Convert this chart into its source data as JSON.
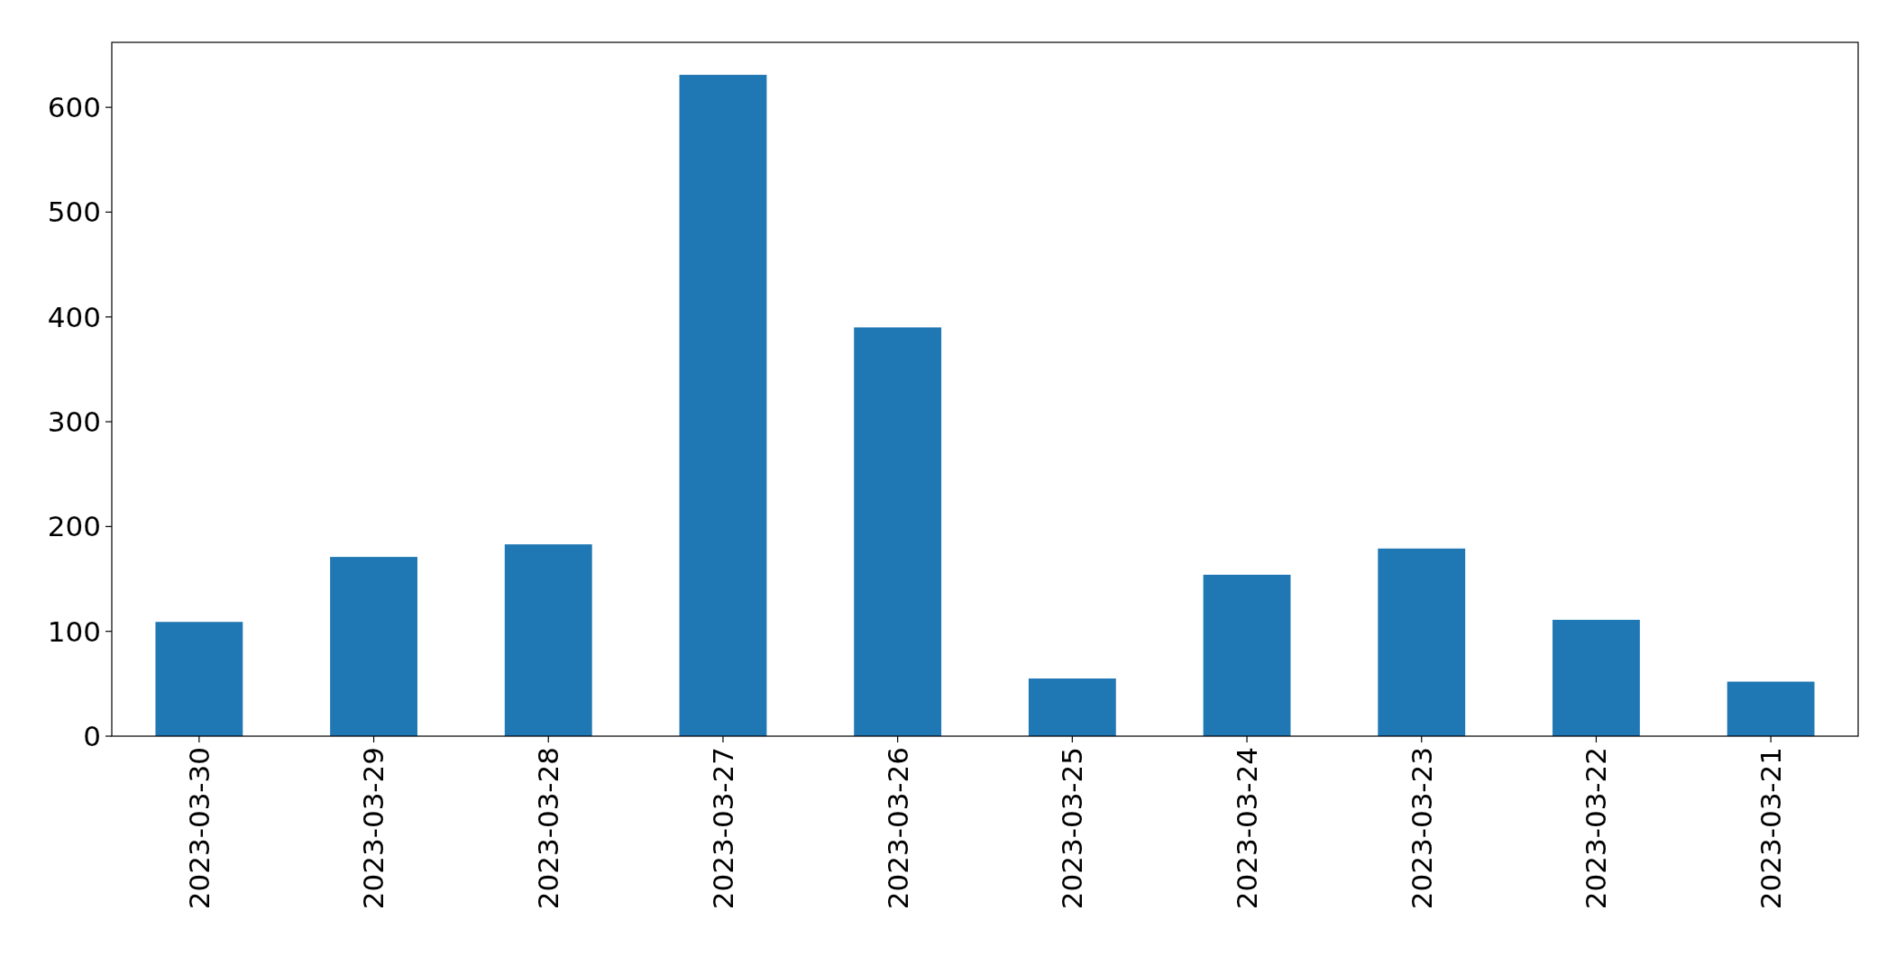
{
  "chart_data": {
    "type": "bar",
    "categories": [
      "2023-03-30",
      "2023-03-29",
      "2023-03-28",
      "2023-03-27",
      "2023-03-26",
      "2023-03-25",
      "2023-03-24",
      "2023-03-23",
      "2023-03-22",
      "2023-03-21"
    ],
    "values": [
      109,
      171,
      183,
      631,
      390,
      55,
      154,
      179,
      111,
      52
    ],
    "color": "#1f77b4",
    "ylim": [
      0,
      662
    ],
    "yticks": [
      0,
      100,
      200,
      300,
      400,
      500,
      600
    ],
    "grid": false
  }
}
